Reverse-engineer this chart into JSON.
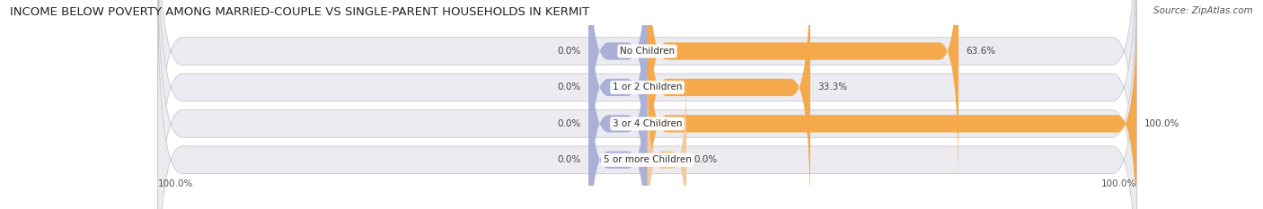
{
  "title": "INCOME BELOW POVERTY AMONG MARRIED-COUPLE VS SINGLE-PARENT HOUSEHOLDS IN KERMIT",
  "source": "Source: ZipAtlas.com",
  "categories": [
    "No Children",
    "1 or 2 Children",
    "3 or 4 Children",
    "5 or more Children"
  ],
  "married_values": [
    0.0,
    0.0,
    0.0,
    0.0
  ],
  "single_values": [
    63.6,
    33.3,
    100.0,
    0.0
  ],
  "married_color": "#aab0d8",
  "single_color": "#f5a94a",
  "single_color_light": "#f5c99a",
  "bar_bg_color": "#ebebf0",
  "bar_border_color": "#c8c8d2",
  "row_bg_even": "#f5f5f8",
  "row_bg_odd": "#eaeaee",
  "title_fontsize": 9.5,
  "source_fontsize": 7.5,
  "label_fontsize": 7.5,
  "tick_fontsize": 7.5,
  "legend_fontsize": 8,
  "xlim": 100,
  "married_stub": 12,
  "bar_height": 0.52,
  "figsize": [
    14.06,
    2.33
  ],
  "dpi": 100
}
